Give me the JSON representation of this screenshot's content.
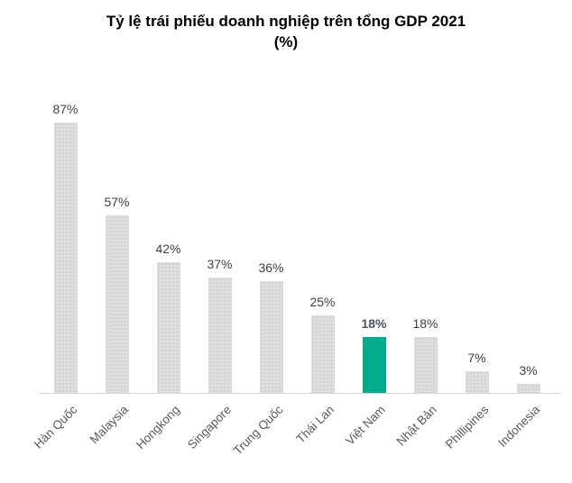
{
  "title": {
    "line1": "Tỷ lệ trái phiếu doanh nghiệp trên tổng GDP 2021",
    "line2": "(%)"
  },
  "chart_data": {
    "type": "bar",
    "title": "Tỷ lệ trái phiếu doanh nghiệp trên tổng GDP 2021 (%)",
    "categories": [
      "Hàn Quốc",
      "Malaysia",
      "Hongkong",
      "Singapore",
      "Trung Quốc",
      "Thái Lan",
      "Việt Nam",
      "Nhật Bản",
      "Phillipines",
      "Indonesia"
    ],
    "values": [
      87,
      57,
      42,
      37,
      36,
      25,
      18,
      18,
      7,
      3
    ],
    "value_labels": [
      "87%",
      "57%",
      "42%",
      "37%",
      "36%",
      "25%",
      "18%",
      "18%",
      "7%",
      "3%"
    ],
    "highlight_index": 6,
    "highlight_category": "Việt Nam",
    "xlabel": "",
    "ylabel": "",
    "ylim": [
      0,
      100
    ],
    "grid": false,
    "legend": false,
    "colors": {
      "bar": "#d9d9d9",
      "highlight_bar": "#00AC8C",
      "value_label": "#404040",
      "highlight_value_label": "#44546A",
      "axis_label": "#595959",
      "axis_line": "#d6d6d6"
    }
  }
}
